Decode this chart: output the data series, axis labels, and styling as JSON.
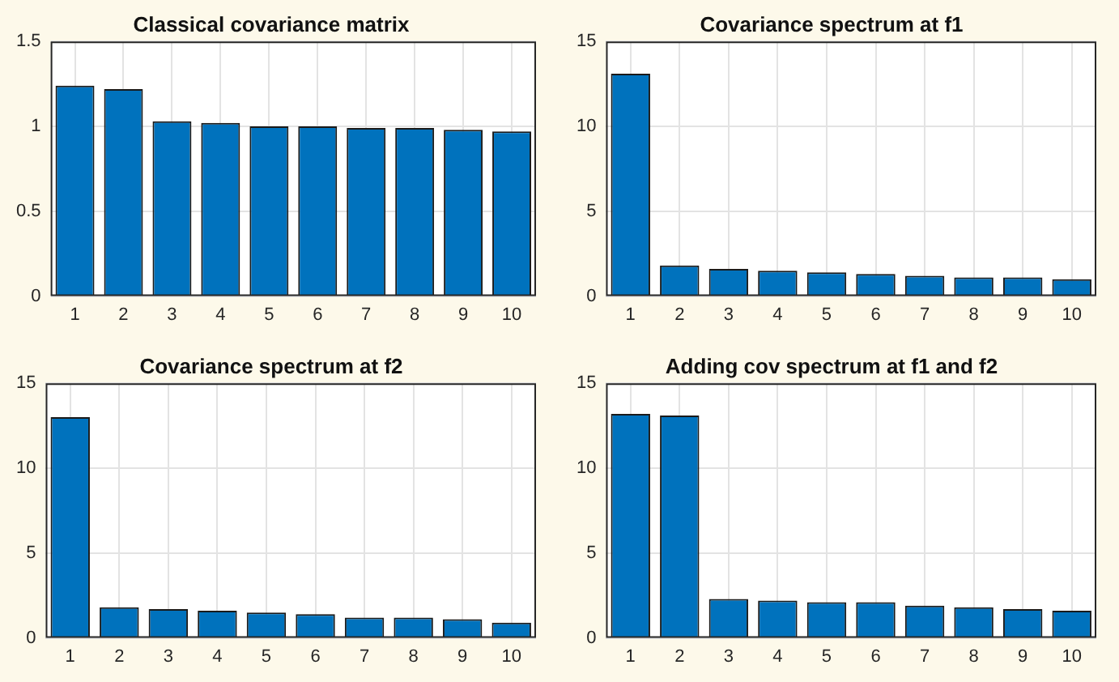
{
  "chart_data": [
    {
      "type": "bar",
      "title": "Classical covariance matrix",
      "categories": [
        "1",
        "2",
        "3",
        "4",
        "5",
        "6",
        "7",
        "8",
        "9",
        "10"
      ],
      "values": [
        1.24,
        1.22,
        1.03,
        1.02,
        1.0,
        1.0,
        0.99,
        0.99,
        0.98,
        0.97
      ],
      "color": "#0072bd",
      "ylim": [
        0,
        1.5
      ],
      "yticks": [
        0,
        0.5,
        1,
        1.5
      ],
      "grid": true
    },
    {
      "type": "bar",
      "title": "Covariance spectrum at f1",
      "categories": [
        "1",
        "2",
        "3",
        "4",
        "5",
        "6",
        "7",
        "8",
        "9",
        "10"
      ],
      "values": [
        13.1,
        1.8,
        1.6,
        1.5,
        1.4,
        1.3,
        1.2,
        1.1,
        1.1,
        1.0
      ],
      "color": "#0072bd",
      "ylim": [
        0,
        15
      ],
      "yticks": [
        0,
        5,
        10,
        15
      ],
      "grid": true
    },
    {
      "type": "bar",
      "title": "Covariance spectrum at f2",
      "categories": [
        "1",
        "2",
        "3",
        "4",
        "5",
        "6",
        "7",
        "8",
        "9",
        "10"
      ],
      "values": [
        13.0,
        1.8,
        1.7,
        1.6,
        1.5,
        1.4,
        1.2,
        1.2,
        1.1,
        0.9
      ],
      "color": "#0072bd",
      "ylim": [
        0,
        15
      ],
      "yticks": [
        0,
        5,
        10,
        15
      ],
      "grid": true
    },
    {
      "type": "bar",
      "title": "Adding cov spectrum at f1 and f2",
      "categories": [
        "1",
        "2",
        "3",
        "4",
        "5",
        "6",
        "7",
        "8",
        "9",
        "10"
      ],
      "values": [
        13.2,
        13.1,
        2.3,
        2.2,
        2.1,
        2.1,
        1.9,
        1.8,
        1.7,
        1.6
      ],
      "color": "#0072bd",
      "ylim": [
        0,
        15
      ],
      "yticks": [
        0,
        5,
        10,
        15
      ],
      "grid": true
    }
  ]
}
